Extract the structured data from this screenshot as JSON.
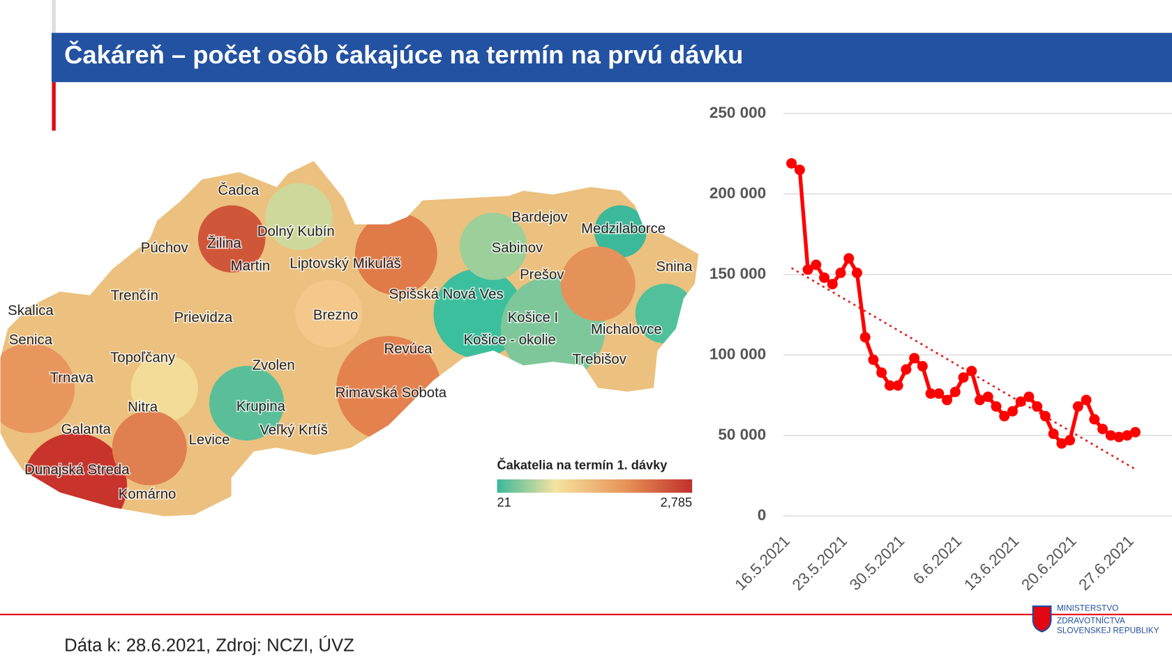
{
  "header": {
    "title": "Čakáreň – počet osôb čakajúce na termín na prvú dávku"
  },
  "map": {
    "districts": [
      "Čadca",
      "Dolný Kubín",
      "Púchov",
      "Žilina",
      "Martin",
      "Liptovský Mikuláš",
      "Bardejov",
      "Medzilaborce",
      "Sabinov",
      "Snina",
      "Prešov",
      "Trenčín",
      "Spišská Nová Ves",
      "Skalica",
      "Prievidza",
      "Brezno",
      "Košice I",
      "Michalovce",
      "Senica",
      "Košice - okolie",
      "Revúca",
      "Topoľčany",
      "Trebišov",
      "Zvolen",
      "Trnava",
      "Rimavská Sobota",
      "Nitra",
      "Krupina",
      "Galanta",
      "Veľký Krtíš",
      "Levice",
      "Dunajská Streda",
      "Komárno"
    ],
    "legend": {
      "title": "Čakatelia na termín 1. dávky",
      "min": "21",
      "max": "2,785"
    }
  },
  "chart_data": {
    "type": "line",
    "x": [
      "17.5.2021",
      "18.5.2021",
      "19.5.2021",
      "20.5.2021",
      "21.5.2021",
      "22.5.2021",
      "23.5.2021",
      "24.5.2021",
      "25.5.2021",
      "26.5.2021",
      "27.5.2021",
      "28.5.2021",
      "29.5.2021",
      "30.5.2021",
      "31.5.2021",
      "1.6.2021",
      "2.6.2021",
      "3.6.2021",
      "4.6.2021",
      "5.6.2021",
      "6.6.2021",
      "7.6.2021",
      "8.6.2021",
      "9.6.2021",
      "10.6.2021",
      "11.6.2021",
      "12.6.2021",
      "13.6.2021",
      "14.6.2021",
      "15.6.2021",
      "16.6.2021",
      "17.6.2021",
      "18.6.2021",
      "19.6.2021",
      "20.6.2021",
      "21.6.2021",
      "22.6.2021",
      "23.6.2021",
      "24.6.2021",
      "25.6.2021",
      "26.6.2021",
      "27.6.2021",
      "28.6.2021"
    ],
    "series": [
      {
        "color": "#ff0000",
        "values": [
          219000,
          215000,
          153000,
          156000,
          148000,
          144000,
          151000,
          160000,
          151000,
          111000,
          97000,
          89000,
          81000,
          81000,
          91000,
          98000,
          93000,
          76000,
          76000,
          72000,
          77000,
          86000,
          90000,
          72000,
          74000,
          68000,
          62000,
          65000,
          71000,
          74000,
          68000,
          62000,
          51000,
          45000,
          47000,
          68000,
          72000,
          60000,
          54000,
          50000,
          49000,
          50000,
          52000
        ]
      }
    ],
    "trend": {
      "color": "#e02020",
      "x": [
        "17.5.2021",
        "28.6.2021"
      ],
      "values": [
        154000,
        29000
      ]
    },
    "ylim": [
      0,
      250000
    ],
    "yticks": [
      0,
      {
        "value": 50000,
        "label": "50 000"
      },
      {
        "value": 100000,
        "label": "100 000"
      },
      {
        "value": 150000,
        "label": "150 000"
      },
      {
        "value": 200000,
        "label": "200 000"
      },
      {
        "value": 250000,
        "label": "250 000"
      }
    ],
    "xticks": [
      "16.5.2021",
      "23.5.2021",
      "30.5.2021",
      "6.6.2021",
      "13.6.2021",
      "20.6.2021",
      "27.6.2021"
    ],
    "grid": true
  },
  "footer": {
    "source": "Dáta k: 28.6.2021, Zdroj: NCZI, ÚVZ",
    "logo": [
      "MINISTERSTVO",
      "ZDRAVOTNÍCTVA",
      "SLOVENSKEJ REPUBLIKY"
    ]
  }
}
